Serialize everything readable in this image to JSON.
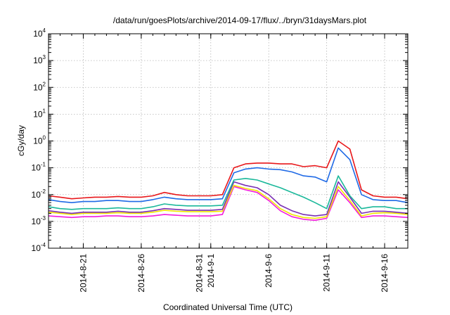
{
  "chart_data": {
    "type": "line",
    "title": "/data/run/goesPlots/archive/2014-09-17/flux/../bryn/31daysMars.plot",
    "xlabel": "Coordinated Universal Time (UTC)",
    "ylabel": "cGy/day",
    "yscale": "log",
    "ylim": [
      0.0001,
      10000
    ],
    "y_ticks": [
      {
        "base": "10",
        "exp": "-4"
      },
      {
        "base": "10",
        "exp": "-3"
      },
      {
        "base": "10",
        "exp": "-2"
      },
      {
        "base": "10",
        "exp": "-1"
      },
      {
        "base": "10",
        "exp": "0"
      },
      {
        "base": "10",
        "exp": "1"
      },
      {
        "base": "10",
        "exp": "2"
      },
      {
        "base": "10",
        "exp": "3"
      },
      {
        "base": "10",
        "exp": "4"
      }
    ],
    "xlim": [
      "2014-08-18",
      "2014-09-18"
    ],
    "x_ticks": [
      {
        "date": "2014-08-21",
        "label": "2014-8-21"
      },
      {
        "date": "2014-08-26",
        "label": "2014-8-26"
      },
      {
        "date": "2014-08-31",
        "label": "2014-8-31"
      },
      {
        "date": "2014-09-01",
        "label": "2014-9-1"
      },
      {
        "date": "2014-09-06",
        "label": "2014-9-6"
      },
      {
        "date": "2014-09-11",
        "label": "2014-9-11"
      },
      {
        "date": "2014-09-16",
        "label": "2014-9-16"
      }
    ],
    "grid": true,
    "x": [
      "2014-08-18",
      "2014-08-19",
      "2014-08-20",
      "2014-08-21",
      "2014-08-22",
      "2014-08-23",
      "2014-08-24",
      "2014-08-25",
      "2014-08-26",
      "2014-08-27",
      "2014-08-28",
      "2014-08-29",
      "2014-08-30",
      "2014-08-31",
      "2014-09-01",
      "2014-09-02",
      "2014-09-03",
      "2014-09-04",
      "2014-09-05",
      "2014-09-06",
      "2014-09-07",
      "2014-09-08",
      "2014-09-09",
      "2014-09-10",
      "2014-09-11",
      "2014-09-12",
      "2014-09-13",
      "2014-09-14",
      "2014-09-15",
      "2014-09-16",
      "2014-09-17",
      "2014-09-18"
    ],
    "series": [
      {
        "color": "#e8171a",
        "values": [
          0.009,
          0.008,
          0.007,
          0.0075,
          0.008,
          0.008,
          0.0085,
          0.008,
          0.008,
          0.009,
          0.012,
          0.01,
          0.009,
          0.009,
          0.009,
          0.01,
          0.1,
          0.14,
          0.15,
          0.15,
          0.14,
          0.14,
          0.11,
          0.12,
          0.1,
          1.0,
          0.5,
          0.015,
          0.009,
          0.008,
          0.008,
          0.007
        ]
      },
      {
        "color": "#1f6ae6",
        "values": [
          0.0065,
          0.0055,
          0.005,
          0.0055,
          0.0055,
          0.006,
          0.006,
          0.0055,
          0.0055,
          0.0065,
          0.008,
          0.007,
          0.0065,
          0.0065,
          0.0065,
          0.007,
          0.065,
          0.09,
          0.1,
          0.09,
          0.085,
          0.07,
          0.05,
          0.045,
          0.03,
          0.55,
          0.2,
          0.01,
          0.0065,
          0.006,
          0.006,
          0.005
        ]
      },
      {
        "color": "#1ab89a",
        "values": [
          0.0035,
          0.003,
          0.0028,
          0.003,
          0.003,
          0.003,
          0.0032,
          0.003,
          0.003,
          0.0035,
          0.0045,
          0.004,
          0.0038,
          0.0038,
          0.0038,
          0.004,
          0.035,
          0.04,
          0.035,
          0.025,
          0.018,
          0.012,
          0.008,
          0.005,
          0.003,
          0.05,
          0.009,
          0.003,
          0.0035,
          0.0035,
          0.003,
          0.003
        ]
      },
      {
        "color": "#7a2fb4",
        "values": [
          0.0025,
          0.0022,
          0.002,
          0.0022,
          0.0022,
          0.0022,
          0.0024,
          0.0022,
          0.0022,
          0.0025,
          0.003,
          0.0028,
          0.0026,
          0.0026,
          0.0026,
          0.0028,
          0.03,
          0.022,
          0.018,
          0.01,
          0.004,
          0.0025,
          0.0018,
          0.0016,
          0.0018,
          0.03,
          0.008,
          0.002,
          0.0024,
          0.0024,
          0.0022,
          0.002
        ]
      },
      {
        "color": "#f2e600",
        "values": [
          0.0022,
          0.002,
          0.0018,
          0.002,
          0.002,
          0.002,
          0.0021,
          0.002,
          0.002,
          0.0022,
          0.0026,
          0.0024,
          0.0023,
          0.0023,
          0.0023,
          0.0024,
          0.022,
          0.017,
          0.014,
          0.007,
          0.003,
          0.0018,
          0.0014,
          0.0013,
          0.0015,
          0.02,
          0.006,
          0.0016,
          0.002,
          0.0021,
          0.002,
          0.0018
        ]
      },
      {
        "color": "#f21bde",
        "values": [
          0.0016,
          0.0015,
          0.0014,
          0.0015,
          0.0015,
          0.0016,
          0.0016,
          0.0015,
          0.0015,
          0.0016,
          0.0018,
          0.0017,
          0.0016,
          0.0016,
          0.0016,
          0.0018,
          0.02,
          0.015,
          0.012,
          0.006,
          0.0025,
          0.0015,
          0.0012,
          0.0011,
          0.0013,
          0.015,
          0.005,
          0.0014,
          0.0016,
          0.0016,
          0.0015,
          0.0014
        ]
      }
    ]
  }
}
